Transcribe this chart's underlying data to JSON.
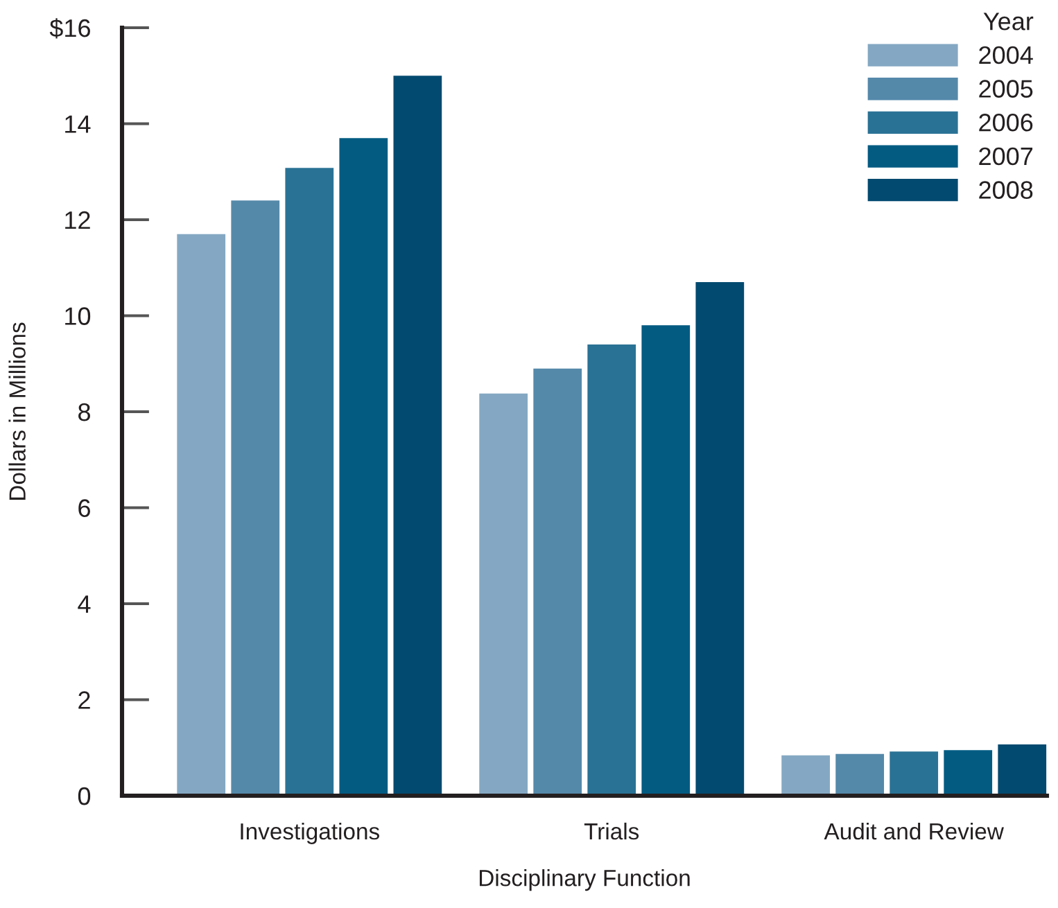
{
  "chart_data": {
    "type": "bar",
    "xlabel": "Disciplinary Function",
    "ylabel": "Dollars in Millions",
    "legend_title": "Year",
    "categories": [
      "Investigations",
      "Trials",
      "Audit and Review"
    ],
    "series": [
      {
        "name": "2004",
        "color": "#84a8c3",
        "values": [
          11.7,
          8.38,
          0.84
        ]
      },
      {
        "name": "2005",
        "color": "#5589aa",
        "values": [
          12.4,
          8.9,
          0.87
        ]
      },
      {
        "name": "2006",
        "color": "#2a7295",
        "values": [
          13.08,
          9.4,
          0.92
        ]
      },
      {
        "name": "2007",
        "color": "#035b82",
        "values": [
          13.7,
          9.8,
          0.95
        ]
      },
      {
        "name": "2008",
        "color": "#034a70",
        "values": [
          15.0,
          10.7,
          1.07
        ]
      }
    ],
    "ylim": [
      0,
      16
    ],
    "yticks": [
      0,
      2,
      4,
      6,
      8,
      10,
      12,
      14,
      {
        "value": 16,
        "label": "$16"
      }
    ],
    "grid": false,
    "legend": "top right"
  }
}
